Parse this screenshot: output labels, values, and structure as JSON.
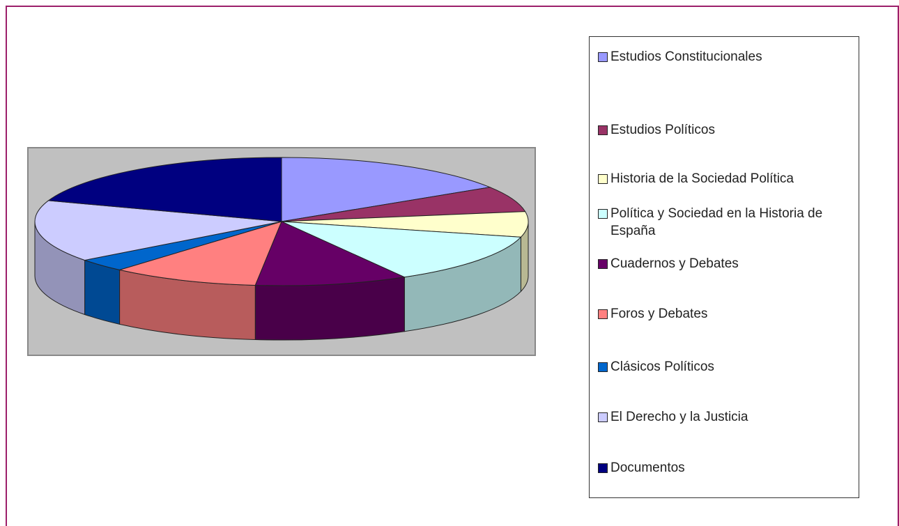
{
  "chart_data": {
    "type": "pie",
    "categories": [
      "Estudios Constitucionales",
      "Estudios Políticos",
      "Historia de la Sociedad Política",
      "Política y Sociedad en la Historia de España",
      "Cuadernos y Debates",
      "Foros y Debates",
      "Clásicos Políticos",
      "El Derecho y la Justicia",
      "Documentos"
    ],
    "values": [
      16,
      6.5,
      6.4,
      12.8,
      10,
      9.7,
      3.3,
      15.6,
      19.7
    ],
    "colors": [
      "#9999ff",
      "#993366",
      "#ffffcc",
      "#ccffff",
      "#660066",
      "#ff8080",
      "#0066cc",
      "#ccccff",
      "#000080"
    ],
    "legend": "right"
  }
}
